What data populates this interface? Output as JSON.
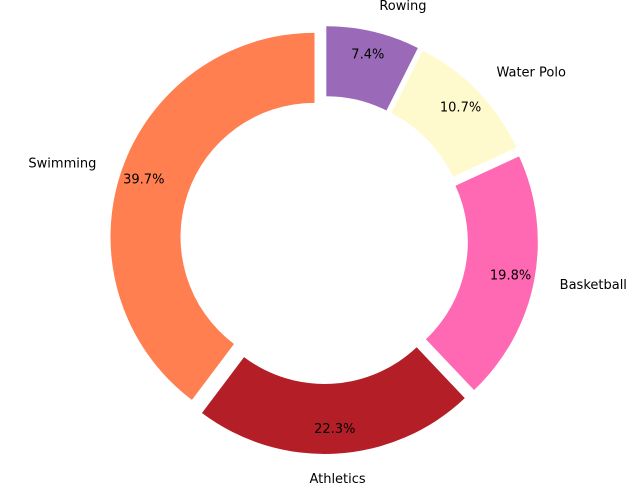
{
  "chart_data": {
    "type": "pie",
    "donut": true,
    "categories": [
      "Swimming",
      "Athletics",
      "Basketball",
      "Water Polo",
      "Rowing"
    ],
    "values": [
      39.7,
      22.3,
      19.8,
      10.7,
      7.4
    ],
    "percent_labels": [
      "39.7%",
      "22.3%",
      "19.8%",
      "10.7%",
      "7.4%"
    ],
    "colors": [
      "#ff7f50",
      "#b31e27",
      "#ff69b4",
      "#fffacd",
      "#9a6ab9"
    ],
    "start_angle_deg": 90,
    "direction": "counterclockwise",
    "exploded": true,
    "legend": "none"
  }
}
